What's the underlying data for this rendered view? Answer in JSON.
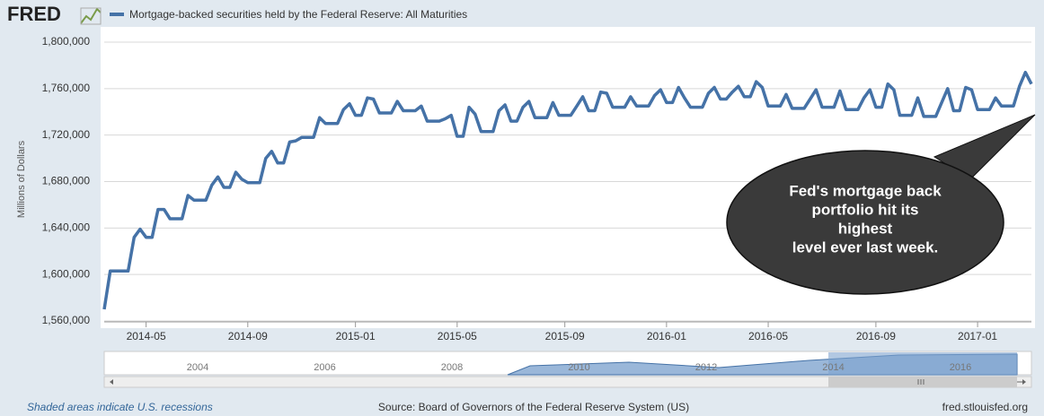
{
  "header": {
    "logo": "FRED"
  },
  "chart_data": {
    "type": "line",
    "y_label": "Millions of Dollars",
    "series": [
      {
        "name": "Mortgage-backed securities held by the Federal Reserve: All Maturities",
        "color": "#4572a7",
        "values": [
          1570000,
          1603000,
          1603000,
          1603000,
          1603000,
          1632000,
          1639000,
          1632000,
          1632000,
          1656000,
          1656000,
          1648000,
          1648000,
          1648000,
          1668000,
          1664000,
          1664000,
          1664000,
          1677000,
          1684000,
          1675000,
          1675000,
          1688000,
          1682000,
          1679000,
          1679000,
          1679000,
          1700000,
          1706000,
          1696000,
          1696000,
          1714000,
          1715000,
          1718000,
          1718000,
          1718000,
          1735000,
          1730000,
          1730000,
          1730000,
          1742000,
          1747000,
          1737000,
          1737000,
          1752000,
          1751000,
          1739000,
          1739000,
          1739000,
          1749000,
          1741000,
          1741000,
          1741000,
          1745000,
          1732000,
          1732000,
          1732000,
          1734000,
          1737000,
          1719000,
          1719000,
          1744000,
          1738000,
          1723000,
          1723000,
          1723000,
          1741000,
          1746000,
          1732000,
          1732000,
          1744000,
          1749000,
          1735000,
          1735000,
          1735000,
          1748000,
          1737000,
          1737000,
          1737000,
          1745000,
          1753000,
          1741000,
          1741000,
          1757000,
          1756000,
          1744000,
          1744000,
          1744000,
          1753000,
          1745000,
          1745000,
          1745000,
          1754000,
          1759000,
          1748000,
          1748000,
          1761000,
          1752000,
          1744000,
          1744000,
          1744000,
          1756000,
          1761000,
          1751000,
          1751000,
          1757000,
          1762000,
          1753000,
          1753000,
          1766000,
          1761000,
          1745000,
          1745000,
          1745000,
          1755000,
          1743000,
          1743000,
          1743000,
          1751000,
          1759000,
          1744000,
          1744000,
          1744000,
          1758000,
          1742000,
          1742000,
          1742000,
          1752000,
          1759000,
          1744000,
          1744000,
          1764000,
          1759000,
          1737000,
          1737000,
          1737000,
          1752000,
          1736000,
          1736000,
          1736000,
          1748000,
          1760000,
          1741000,
          1741000,
          1761000,
          1759000,
          1742000,
          1742000,
          1742000,
          1752000,
          1745000,
          1745000,
          1745000,
          1762000,
          1774000,
          1764000
        ]
      }
    ],
    "xlim": [
      0,
      155
    ],
    "xticks": [
      {
        "value": 7,
        "label": "2014-05"
      },
      {
        "value": 24,
        "label": "2014-09"
      },
      {
        "value": 42,
        "label": "2015-01"
      },
      {
        "value": 59,
        "label": "2015-05"
      },
      {
        "value": 77,
        "label": "2015-09"
      },
      {
        "value": 94,
        "label": "2016-01"
      },
      {
        "value": 111,
        "label": "2016-05"
      },
      {
        "value": 129,
        "label": "2016-09"
      },
      {
        "value": 146,
        "label": "2017-01"
      }
    ],
    "ylim": [
      1560000,
      1800000
    ],
    "yticks": [
      {
        "value": 1560000,
        "label": "1,560,000"
      },
      {
        "value": 1600000,
        "label": "1,600,000"
      },
      {
        "value": 1640000,
        "label": "1,640,000"
      },
      {
        "value": 1680000,
        "label": "1,680,000"
      },
      {
        "value": 1720000,
        "label": "1,720,000"
      },
      {
        "value": 1760000,
        "label": "1,760,000"
      },
      {
        "value": 1800000,
        "label": "1,800,000"
      }
    ],
    "grid": true,
    "annotation": [
      "Fed's mortgage back",
      "portfolio hit its",
      "highest",
      "level ever last week."
    ]
  },
  "navigator": {
    "labels": [
      "2004",
      "2006",
      "2008",
      "2010",
      "2012",
      "2014",
      "2016"
    ]
  },
  "footer": {
    "recessions": "Shaded areas indicate U.S. recessions",
    "source": "Source: Board of Governors of the Federal Reserve System (US)",
    "site": "fred.stlouisfed.org"
  }
}
